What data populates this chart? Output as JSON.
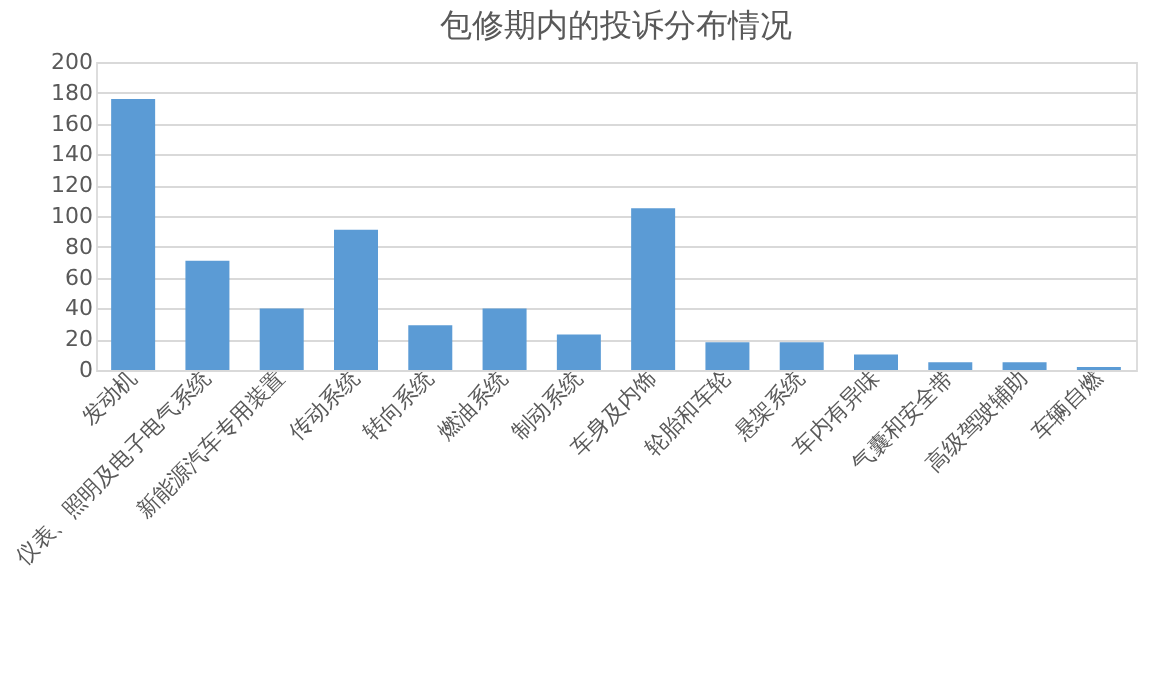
{
  "chart_data": {
    "type": "bar",
    "title": "包修期内的投诉分布情况",
    "categories": [
      "发动机",
      "仪表、照明及电子电气系统",
      "新能源汽车专用装置",
      "传动系统",
      "转向系统",
      "燃油系统",
      "制动系统",
      "车身及内饰",
      "轮胎和车轮",
      "悬架系统",
      "车内有异味",
      "气囊和安全带",
      "高级驾驶辅助",
      "车辆自燃"
    ],
    "values": [
      176,
      71,
      40,
      91,
      29,
      40,
      23,
      105,
      18,
      18,
      10,
      5,
      5,
      2
    ],
    "color": "#5b9bd5",
    "ylim": [
      0,
      200
    ],
    "yticks": [
      0,
      20,
      40,
      60,
      80,
      100,
      120,
      140,
      160,
      180,
      200
    ],
    "grid": "y"
  }
}
